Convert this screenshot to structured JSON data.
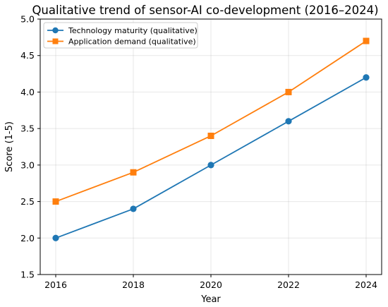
{
  "chart_data": {
    "type": "line",
    "title": "Qualitative trend of sensor-AI co-development (2016–2024)",
    "xlabel": "Year",
    "ylabel": "Score (1-5)",
    "x": [
      2016,
      2018,
      2020,
      2022,
      2024
    ],
    "xticks": [
      "2016",
      "2018",
      "2020",
      "2022",
      "2024"
    ],
    "yticks": [
      "1.5",
      "2.0",
      "2.5",
      "3.0",
      "3.5",
      "4.0",
      "4.5",
      "5.0"
    ],
    "xlim": [
      2015.6,
      2024.4
    ],
    "ylim": [
      1.5,
      5.0
    ],
    "grid": true,
    "legend_position": "top-left",
    "series": [
      {
        "name": "Technology maturity (qualitative)",
        "values": [
          2.0,
          2.4,
          3.0,
          3.6,
          4.2
        ],
        "color": "#1f77b4",
        "marker": "circle"
      },
      {
        "name": "Application demand (qualitative)",
        "values": [
          2.5,
          2.9,
          3.4,
          4.0,
          4.7
        ],
        "color": "#ff7f0e",
        "marker": "square"
      }
    ]
  }
}
